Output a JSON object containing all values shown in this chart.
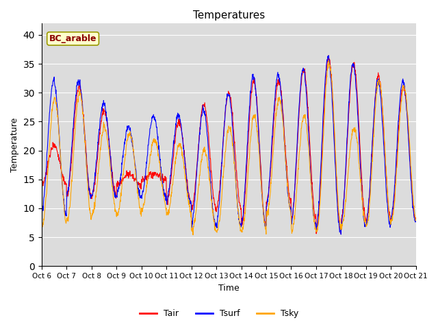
{
  "title": "Temperatures",
  "xlabel": "Time",
  "ylabel": "Temperature",
  "ylim": [
    0,
    42
  ],
  "yticks": [
    0,
    5,
    10,
    15,
    20,
    25,
    30,
    35,
    40
  ],
  "annotation": "BC_arable",
  "legend_labels": [
    "Tair",
    "Tsurf",
    "Tsky"
  ],
  "colors": [
    "#ff0000",
    "#0000ff",
    "#ffa500"
  ],
  "background_color": "#dcdcdc",
  "x_labels": [
    "Oct 6",
    "Oct 7",
    "Oct 8",
    "Oct 9",
    "Oct 10",
    "Oct 11",
    "Oct 12",
    "Oct 13",
    "Oct 14",
    "Oct 15",
    "Oct 16",
    "Oct 17",
    "Oct 18",
    "Oct 19",
    "Oct 20",
    "Oct 21"
  ],
  "n_days": 15,
  "points_per_day": 96
}
